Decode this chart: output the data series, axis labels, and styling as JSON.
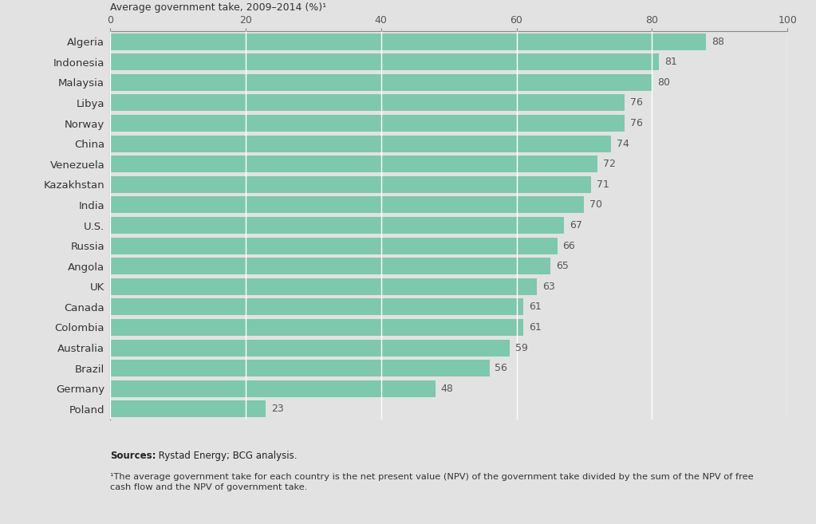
{
  "countries": [
    "Algeria",
    "Indonesia",
    "Malaysia",
    "Libya",
    "Norway",
    "China",
    "Venezuela",
    "Kazakhstan",
    "India",
    "U.S.",
    "Russia",
    "Angola",
    "UK",
    "Canada",
    "Colombia",
    "Australia",
    "Brazil",
    "Germany",
    "Poland"
  ],
  "values": [
    88,
    81,
    80,
    76,
    76,
    74,
    72,
    71,
    70,
    67,
    66,
    65,
    63,
    61,
    61,
    59,
    56,
    48,
    23
  ],
  "bar_color": "#7ec8ad",
  "background_color": "#e2e2e2",
  "plot_bg_color": "#e2e2e2",
  "gap_color": "#d0d0d0",
  "title": "Average government take, 2009–2014 (%)¹",
  "xlim": [
    0,
    100
  ],
  "xticks": [
    0,
    20,
    40,
    60,
    80,
    100
  ],
  "label_fontsize": 9.5,
  "tick_fontsize": 9,
  "title_fontsize": 9,
  "value_fontsize": 9,
  "footnote_bold": "Sources:",
  "footnote_text": " Rystad Energy; BCG analysis.",
  "footnote2": "¹The average government take for each country is the net present value (NPV) of the government take divided by the sum of the NPV of free\ncash flow and the NPV of government take."
}
